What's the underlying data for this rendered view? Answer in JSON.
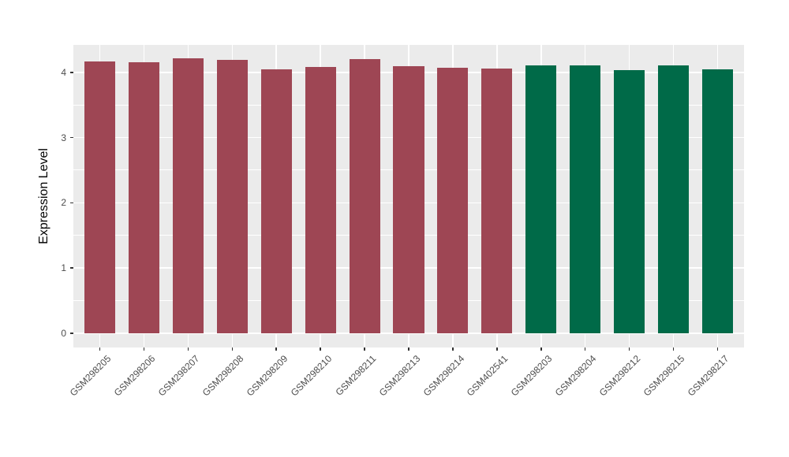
{
  "chart_data": {
    "type": "bar",
    "title": "",
    "xlabel": "",
    "ylabel": "Expression Level",
    "categories": [
      "GSM298205",
      "GSM298206",
      "GSM298207",
      "GSM298208",
      "GSM298209",
      "GSM298210",
      "GSM298211",
      "GSM298213",
      "GSM298214",
      "GSM402541",
      "GSM298203",
      "GSM298204",
      "GSM298212",
      "GSM298215",
      "GSM298217"
    ],
    "values": [
      4.17,
      4.15,
      4.22,
      4.19,
      4.05,
      4.08,
      4.2,
      4.09,
      4.07,
      4.06,
      4.11,
      4.11,
      4.03,
      4.11,
      4.04
    ],
    "bar_colors": [
      "#9E4654",
      "#9E4654",
      "#9E4654",
      "#9E4654",
      "#9E4654",
      "#9E4654",
      "#9E4654",
      "#9E4654",
      "#9E4654",
      "#9E4654",
      "#006A48",
      "#006A48",
      "#006A48",
      "#006A48",
      "#006A48"
    ],
    "group_colors": {
      "maroon_group": "#9E4654",
      "green_group": "#006A48"
    },
    "ylim": [
      -0.22,
      4.42
    ],
    "ytick_values": [
      0,
      1,
      2,
      3,
      4
    ],
    "ytick_labels": [
      "0",
      "1",
      "2",
      "3",
      "4"
    ],
    "ytick_minor_values": [
      0.5,
      1.5,
      2.5,
      3.5
    ],
    "grid": true,
    "legend": "none",
    "x_label_angle": -45,
    "bar_width_fraction": 0.7,
    "panel_bg": "#EBEBEB",
    "grid_color": "#FFFFFF",
    "axis_text_color": "#4D4D4D",
    "axis_title_color": "#000000",
    "tick_mark_color": "#333333",
    "figure_bg": "#FFFFFF"
  }
}
